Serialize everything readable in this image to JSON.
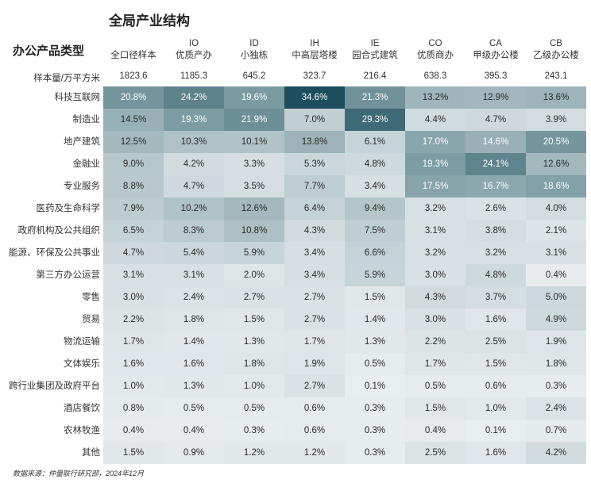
{
  "title": "全局产业结构",
  "corner_label": "办公产品类型",
  "sample_label": "样本量/万平方米",
  "footer": "数据来源：仲量联行研究部，2024年12月",
  "colors": {
    "low": "#e9edef",
    "mid": "#7f9ea5",
    "high": "#1c4e5d"
  },
  "chart_data": {
    "type": "heatmap",
    "title": "全局产业结构",
    "columns": [
      {
        "code": "",
        "name": "全口径样本"
      },
      {
        "code": "IO",
        "name": "优质产办"
      },
      {
        "code": "ID",
        "name": "小独栋"
      },
      {
        "code": "IH",
        "name": "中高层塔楼"
      },
      {
        "code": "IE",
        "name": "园合式建筑"
      },
      {
        "code": "CO",
        "name": "优质商办"
      },
      {
        "code": "CA",
        "name": "甲级办公楼"
      },
      {
        "code": "CB",
        "name": "乙级办公楼"
      }
    ],
    "samples": [
      "1823.6",
      "1185.3",
      "645.2",
      "323.7",
      "216.4",
      "638.3",
      "395.3",
      "243.1"
    ],
    "rows": [
      {
        "label": "科技互联网",
        "values": [
          20.8,
          24.2,
          19.6,
          34.6,
          21.3,
          13.2,
          12.9,
          13.6
        ]
      },
      {
        "label": "制造业",
        "values": [
          14.5,
          19.3,
          21.9,
          7.0,
          29.3,
          4.4,
          4.7,
          3.9
        ]
      },
      {
        "label": "地产建筑",
        "values": [
          12.5,
          10.3,
          10.1,
          13.8,
          6.1,
          17.0,
          14.6,
          20.5
        ]
      },
      {
        "label": "金融业",
        "values": [
          9.0,
          4.2,
          3.3,
          5.3,
          4.8,
          19.3,
          24.1,
          12.6
        ]
      },
      {
        "label": "专业服务",
        "values": [
          8.8,
          4.7,
          3.5,
          7.7,
          3.4,
          17.5,
          16.7,
          18.6
        ]
      },
      {
        "label": "医药及生命科学",
        "values": [
          7.9,
          10.2,
          12.6,
          6.4,
          9.4,
          3.2,
          2.6,
          4.0
        ]
      },
      {
        "label": "政府机构及公共组织",
        "values": [
          6.5,
          8.3,
          10.8,
          4.3,
          7.5,
          3.1,
          3.8,
          2.1
        ]
      },
      {
        "label": "能源、环保及公共事业",
        "values": [
          4.7,
          5.4,
          5.9,
          3.4,
          6.6,
          3.2,
          3.2,
          3.1
        ]
      },
      {
        "label": "第三方办公运营",
        "values": [
          3.1,
          3.1,
          2.0,
          3.4,
          5.9,
          3.0,
          4.8,
          0.4
        ]
      },
      {
        "label": "零售",
        "values": [
          3.0,
          2.4,
          2.7,
          2.7,
          1.5,
          4.3,
          3.7,
          5.0
        ]
      },
      {
        "label": "贸易",
        "values": [
          2.2,
          1.8,
          1.5,
          2.7,
          1.4,
          3.0,
          1.6,
          4.9
        ]
      },
      {
        "label": "物流运输",
        "values": [
          1.7,
          1.4,
          1.3,
          1.7,
          1.3,
          2.2,
          2.5,
          1.9
        ]
      },
      {
        "label": "文体娱乐",
        "values": [
          1.6,
          1.6,
          1.8,
          1.9,
          0.5,
          1.7,
          1.5,
          1.8
        ]
      },
      {
        "label": "跨行业集团及政府平台",
        "values": [
          1.0,
          1.3,
          1.0,
          2.7,
          0.1,
          0.5,
          0.6,
          0.3
        ]
      },
      {
        "label": "酒店餐饮",
        "values": [
          0.8,
          0.5,
          0.5,
          0.6,
          0.3,
          1.5,
          1.0,
          2.4
        ]
      },
      {
        "label": "农林牧渔",
        "values": [
          0.4,
          0.4,
          0.3,
          0.6,
          0.3,
          0.4,
          0.1,
          0.7
        ]
      },
      {
        "label": "其他",
        "values": [
          1.5,
          0.9,
          1.2,
          1.2,
          0.3,
          2.5,
          1.6,
          4.2
        ]
      }
    ]
  }
}
